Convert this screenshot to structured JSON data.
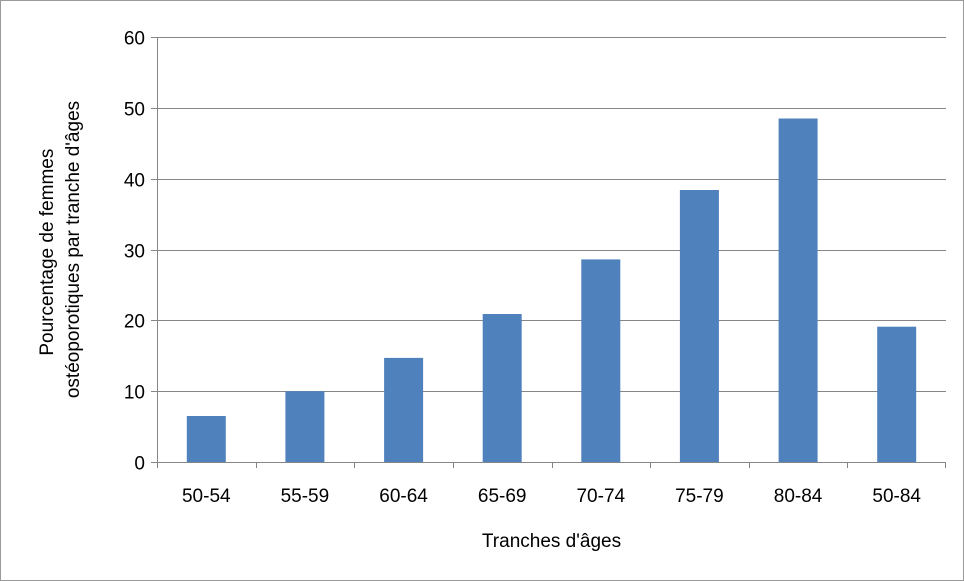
{
  "chart_data": {
    "type": "bar",
    "categories": [
      "50-54",
      "55-59",
      "60-64",
      "65-69",
      "70-74",
      "75-79",
      "80-84",
      "50-84"
    ],
    "values": [
      6.5,
      10.0,
      14.7,
      20.9,
      28.6,
      38.4,
      48.5,
      19.1
    ],
    "xlabel": "Tranches d'âges",
    "ylabel_lines": [
      "Pourcentage de femmes",
      "ostéoporotiques par tranche d'âges"
    ],
    "ylim": [
      0,
      60
    ],
    "yticks": [
      0,
      10,
      20,
      30,
      40,
      50,
      60
    ],
    "grid": true,
    "legend": "none",
    "bar_color": "#4F81BD",
    "grid_color": "#868686"
  }
}
